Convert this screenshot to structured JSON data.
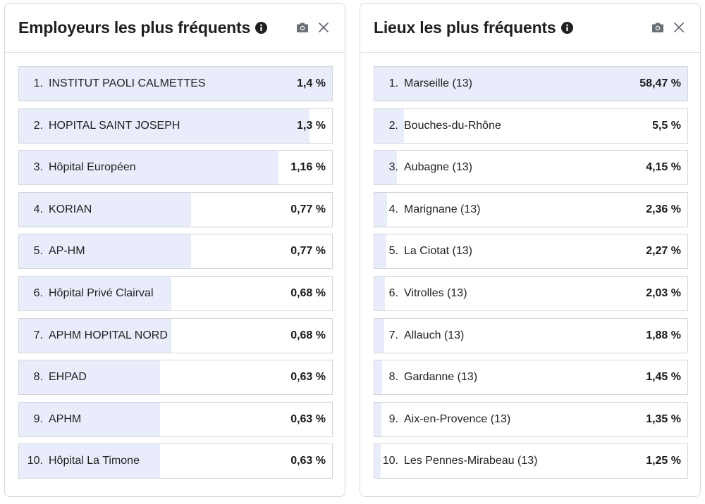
{
  "colors": {
    "bar_fill": "#e9edfb",
    "border": "#d3d6db",
    "text": "#222222"
  },
  "icons": {
    "info": "info-circle-icon",
    "camera": "camera-icon",
    "close": "close-icon"
  },
  "employers": {
    "title": "Employeurs les plus fréquents",
    "items": [
      {
        "rank": "1.",
        "label": "INSTITUT PAOLI CALMETTES",
        "value": "1,4 %",
        "pct": 1.4
      },
      {
        "rank": "2.",
        "label": "HOPITAL SAINT JOSEPH",
        "value": "1,3 %",
        "pct": 1.3
      },
      {
        "rank": "3.",
        "label": "Hôpital Européen",
        "value": "1,16 %",
        "pct": 1.16
      },
      {
        "rank": "4.",
        "label": "KORIAN",
        "value": "0,77 %",
        "pct": 0.77
      },
      {
        "rank": "5.",
        "label": "AP-HM",
        "value": "0,77 %",
        "pct": 0.77
      },
      {
        "rank": "6.",
        "label": "Hôpital Privé Clairval",
        "value": "0,68 %",
        "pct": 0.68
      },
      {
        "rank": "7.",
        "label": "APHM HOPITAL NORD",
        "value": "0,68 %",
        "pct": 0.68
      },
      {
        "rank": "8.",
        "label": "EHPAD",
        "value": "0,63 %",
        "pct": 0.63
      },
      {
        "rank": "9.",
        "label": "APHM",
        "value": "0,63 %",
        "pct": 0.63
      },
      {
        "rank": "10.",
        "label": "Hôpital La Timone",
        "value": "0,63 %",
        "pct": 0.63
      }
    ]
  },
  "places": {
    "title": "Lieux les plus fréquents",
    "items": [
      {
        "rank": "1.",
        "label": "Marseille (13)",
        "value": "58,47 %",
        "pct": 58.47
      },
      {
        "rank": "2.",
        "label": "Bouches-du-Rhône",
        "value": "5,5 %",
        "pct": 5.5
      },
      {
        "rank": "3.",
        "label": "Aubagne (13)",
        "value": "4,15 %",
        "pct": 4.15
      },
      {
        "rank": "4.",
        "label": "Marignane (13)",
        "value": "2,36 %",
        "pct": 2.36
      },
      {
        "rank": "5.",
        "label": "La Ciotat (13)",
        "value": "2,27 %",
        "pct": 2.27
      },
      {
        "rank": "6.",
        "label": "Vitrolles (13)",
        "value": "2,03 %",
        "pct": 2.03
      },
      {
        "rank": "7.",
        "label": "Allauch (13)",
        "value": "1,88 %",
        "pct": 1.88
      },
      {
        "rank": "8.",
        "label": "Gardanne (13)",
        "value": "1,45 %",
        "pct": 1.45
      },
      {
        "rank": "9.",
        "label": "Aix-en-Provence (13)",
        "value": "1,35 %",
        "pct": 1.35
      },
      {
        "rank": "10.",
        "label": "Les Pennes-Mirabeau (13)",
        "value": "1,25 %",
        "pct": 1.25
      }
    ]
  }
}
